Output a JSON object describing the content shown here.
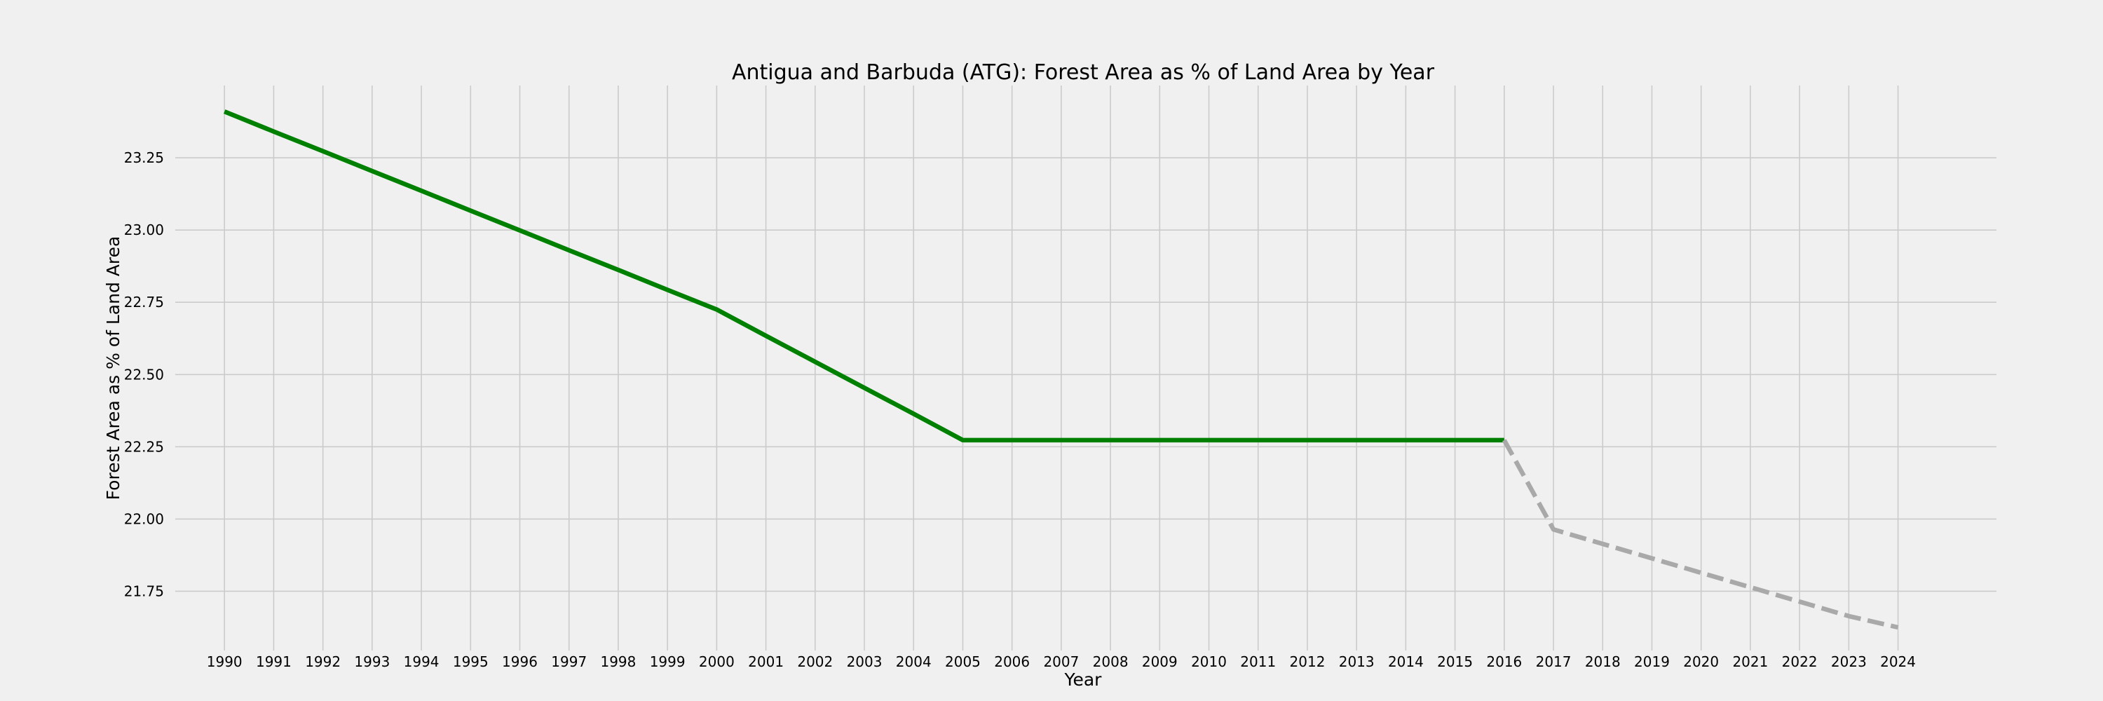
{
  "chart_data": {
    "type": "line",
    "title": "Antigua and Barbuda (ATG): Forest Area as % of Land Area by Year",
    "xlabel": "Year",
    "ylabel": "Forest Area as % of Land Area",
    "x": [
      1990,
      1991,
      1992,
      1993,
      1994,
      1995,
      1996,
      1997,
      1998,
      1999,
      2000,
      2001,
      2002,
      2003,
      2004,
      2005,
      2006,
      2007,
      2008,
      2009,
      2010,
      2011,
      2012,
      2013,
      2014,
      2015,
      2016,
      2017,
      2018,
      2019,
      2020,
      2021,
      2022,
      2023,
      2024
    ],
    "xlim": [
      1989.0,
      2026.0
    ],
    "ylim": [
      21.545,
      23.5
    ],
    "yticks": [
      21.75,
      22.0,
      22.25,
      22.5,
      22.75,
      23.0,
      23.25
    ],
    "ytick_labels": [
      "21.75",
      "22.00",
      "22.25",
      "22.50",
      "22.75",
      "23.00",
      "23.25"
    ],
    "grid": true,
    "series": [
      {
        "style": "solid",
        "color": "#008000",
        "x": [
          1990,
          1991,
          1992,
          1993,
          1994,
          1995,
          1996,
          1997,
          1998,
          1999,
          2000,
          2001,
          2002,
          2003,
          2004,
          2005,
          2006,
          2007,
          2008,
          2009,
          2010,
          2011,
          2012,
          2013,
          2014,
          2015,
          2016
        ],
        "values": [
          23.41,
          23.341,
          23.273,
          23.204,
          23.136,
          23.067,
          22.999,
          22.93,
          22.862,
          22.793,
          22.725,
          22.634,
          22.544,
          22.454,
          22.364,
          22.273,
          22.273,
          22.273,
          22.273,
          22.273,
          22.273,
          22.273,
          22.273,
          22.273,
          22.273,
          22.273,
          22.273
        ]
      },
      {
        "style": "dashed",
        "color": "#a9a9a9",
        "x": [
          2016,
          2017,
          2018,
          2019,
          2020,
          2021,
          2022,
          2023,
          2024
        ],
        "values": [
          22.273,
          21.964,
          21.914,
          21.864,
          21.814,
          21.764,
          21.714,
          21.664,
          21.625
        ]
      }
    ]
  }
}
